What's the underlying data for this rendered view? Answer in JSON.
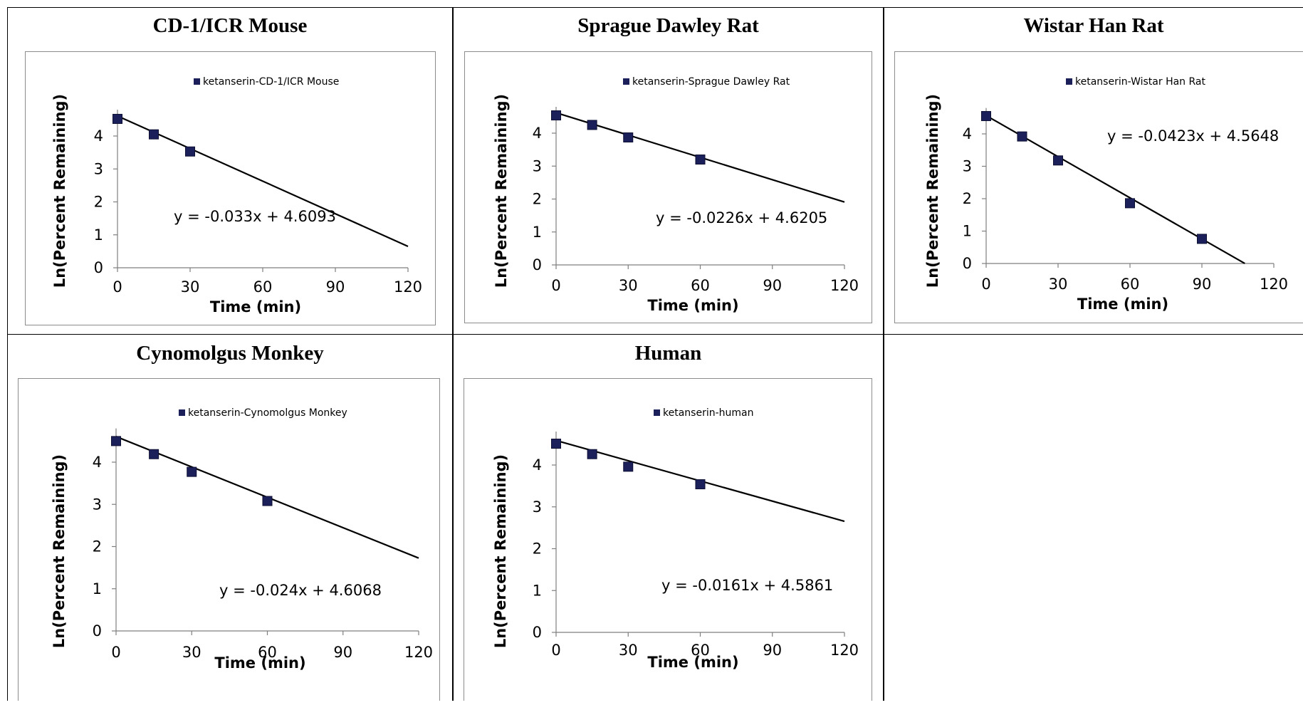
{
  "colors": {
    "marker": "#1b1f5a",
    "line": "#000000",
    "axis": "#7f7f7f",
    "border": "#000000"
  },
  "chart_data": [
    {
      "type": "scatter",
      "title": "CD-1/ICR Mouse",
      "legend": "ketanserin-CD-1/ICR Mouse",
      "legend_position": "top",
      "xlabel": "Time (min)",
      "ylabel": "Ln(Percent Remaining)",
      "xlim": [
        0,
        120
      ],
      "ylim": [
        0,
        4.8
      ],
      "xticks": [
        "0",
        "30",
        "60",
        "90",
        "120"
      ],
      "yticks": [
        "0",
        "1",
        "2",
        "3",
        "4"
      ],
      "x": [
        0,
        15,
        30
      ],
      "y": [
        4.52,
        4.05,
        3.53
      ],
      "trendline": {
        "slope": -0.033,
        "intercept": 4.6093,
        "x_end": 120,
        "equation": "y = -0.033x + 4.6093"
      },
      "grid": false
    },
    {
      "type": "scatter",
      "title": "Sprague Dawley Rat",
      "legend": "ketanserin-Sprague Dawley Rat",
      "legend_position": "top",
      "xlabel": "Time (min)",
      "ylabel": "Ln(Percent Remaining)",
      "xlim": [
        0,
        120
      ],
      "ylim": [
        0,
        4.8
      ],
      "xticks": [
        "0",
        "30",
        "60",
        "90",
        "120"
      ],
      "yticks": [
        "0",
        "1",
        "2",
        "3",
        "4"
      ],
      "x": [
        0,
        15,
        30,
        60
      ],
      "y": [
        4.54,
        4.25,
        3.87,
        3.2
      ],
      "trendline": {
        "slope": -0.0226,
        "intercept": 4.6205,
        "x_end": 120,
        "equation": "y = -0.0226x + 4.6205"
      },
      "grid": false
    },
    {
      "type": "scatter",
      "title": "Wistar Han Rat",
      "legend": "ketanserin-Wistar Han Rat",
      "legend_position": "top",
      "xlabel": "Time (min)",
      "ylabel": "Ln(Percent Remaining)",
      "xlim": [
        0,
        120
      ],
      "ylim": [
        0,
        4.8
      ],
      "xticks": [
        "0",
        "30",
        "60",
        "90",
        "120"
      ],
      "yticks": [
        "0",
        "1",
        "2",
        "3",
        "4"
      ],
      "x": [
        0,
        15,
        30,
        60,
        90
      ],
      "y": [
        4.55,
        3.92,
        3.18,
        1.86,
        0.76
      ],
      "trendline": {
        "slope": -0.0423,
        "intercept": 4.5648,
        "x_end": 107.9,
        "equation": "y = -0.0423x + 4.5648"
      },
      "grid": false
    },
    {
      "type": "scatter",
      "title": "Cynomolgus Monkey",
      "legend": "ketanserin-Cynomolgus Monkey",
      "legend_position": "top",
      "xlabel": "Time (min)",
      "ylabel": "Ln(Percent Remaining)",
      "xlim": [
        0,
        120
      ],
      "ylim": [
        0,
        4.8
      ],
      "xticks": [
        "0",
        "30",
        "60",
        "90",
        "120"
      ],
      "yticks": [
        "0",
        "1",
        "2",
        "3",
        "4"
      ],
      "x": [
        0,
        15,
        30,
        60
      ],
      "y": [
        4.5,
        4.19,
        3.77,
        3.08
      ],
      "trendline": {
        "slope": -0.024,
        "intercept": 4.6068,
        "x_end": 120,
        "equation": "y = -0.024x + 4.6068"
      },
      "grid": false
    },
    {
      "type": "scatter",
      "title": "Human",
      "legend": "ketanserin-human",
      "legend_position": "top",
      "xlabel": "Time (min)",
      "ylabel": "Ln(Percent Remaining)",
      "xlim": [
        0,
        120
      ],
      "ylim": [
        0,
        4.8
      ],
      "xticks": [
        "0",
        "30",
        "60",
        "90",
        "120"
      ],
      "yticks": [
        "0",
        "1",
        "2",
        "3",
        "4"
      ],
      "x": [
        0,
        15,
        30,
        60
      ],
      "y": [
        4.51,
        4.26,
        3.96,
        3.54
      ],
      "trendline": {
        "slope": -0.0161,
        "intercept": 4.5861,
        "x_end": 120,
        "equation": "y = -0.0161x + 4.5861"
      },
      "grid": false
    }
  ]
}
